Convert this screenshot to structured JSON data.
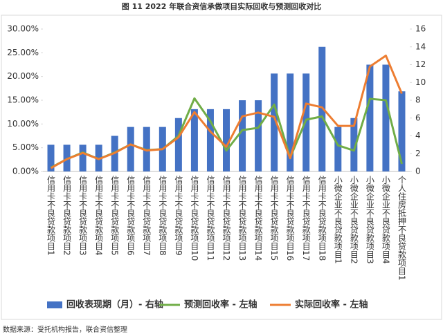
{
  "chart_data": {
    "type": "bar-line",
    "title": "图 11    2022 年联合资信承做项目实际回收与预测回收对比",
    "source": "数据来源：受托机构报告，联合资信整理",
    "categories": [
      "信用卡不良贷款项目1",
      "信用卡不良贷款项目2",
      "信用卡不良贷款项目3",
      "信用卡不良贷款项目4",
      "信用卡不良贷款项目5",
      "信用卡不良贷款项目6",
      "信用卡不良贷款项目7",
      "信用卡不良贷款项目8",
      "信用卡不良贷款项目9",
      "信用卡不良贷款项目10",
      "信用卡不良贷款项目11",
      "信用卡不良贷款项目12",
      "信用卡不良贷款项目13",
      "信用卡不良贷款项目14",
      "信用卡不良贷款项目15",
      "信用卡不良贷款项目16",
      "信用卡不良贷款项目17",
      "信用卡不良贷款项目18",
      "小微企业不良贷款项目1",
      "小微企业不良贷款项目2",
      "小微企业不良贷款项目3",
      "小微企业不良贷款项目4",
      "个人住房抵押不良贷款项目1"
    ],
    "series": [
      {
        "name": "回收表现期（月）- 右轴",
        "type": "bar",
        "axis": "y2",
        "color": "#4472c4",
        "values": [
          3,
          3,
          3,
          3,
          4,
          5,
          5,
          5,
          6,
          7,
          7,
          7,
          8,
          8,
          11,
          11,
          11,
          14,
          5,
          6,
          12,
          12,
          9
        ]
      },
      {
        "name": "预测回收率 - 左轴",
        "type": "line",
        "color": "#70ad47",
        "values": [
          0.8,
          2.6,
          4.0,
          2.6,
          4.0,
          5.7,
          4.5,
          4.7,
          7.5,
          15.4,
          10.6,
          4.4,
          8.7,
          9.2,
          14.1,
          2.9,
          10.9,
          11.6,
          5.5,
          4.4,
          15.3,
          15.0,
          1.6
        ]
      },
      {
        "name": "实际回收率 - 左轴",
        "type": "line",
        "color": "#ed7d31",
        "values": [
          0.7,
          2.6,
          3.9,
          2.6,
          3.9,
          5.7,
          4.4,
          4.7,
          7.2,
          12.5,
          8.4,
          5.2,
          11.6,
          12.4,
          11.5,
          2.8,
          14.3,
          13.5,
          9.6,
          9.6,
          22.1,
          24.4,
          16.4
        ]
      }
    ],
    "ylim": [
      0,
      30
    ],
    "yticks": [
      {
        "value": 0,
        "label": "0.00%"
      },
      {
        "value": 5,
        "label": "5.00%"
      },
      {
        "value": 10,
        "label": "10.00%"
      },
      {
        "value": 15,
        "label": "15.00%"
      },
      {
        "value": 20,
        "label": "20.00%"
      },
      {
        "value": 25,
        "label": "25.00%"
      },
      {
        "value": 30,
        "label": "30.00%"
      }
    ],
    "y2lim": [
      0,
      16
    ],
    "y2ticks": [
      0,
      2,
      4,
      6,
      8,
      10,
      12,
      14,
      16
    ],
    "grid": false
  }
}
